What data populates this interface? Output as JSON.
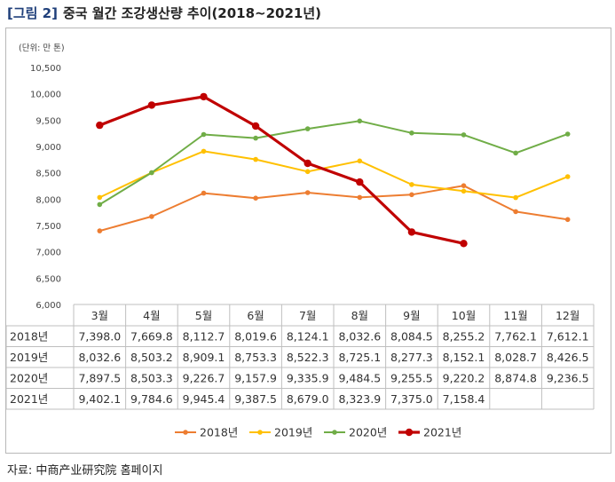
{
  "header": {
    "tag": "[그림 2]",
    "title": "중국 월간 조강생산량 추이(2018~2021년)"
  },
  "source": "자료: 中商产业研究院 홈페이지",
  "chart_data": {
    "type": "line",
    "unit_label": "(단위: 만 톤)",
    "categories": [
      "3월",
      "4월",
      "5월",
      "6월",
      "7월",
      "8월",
      "9월",
      "10월",
      "11월",
      "12월"
    ],
    "ylim": [
      6000,
      10500
    ],
    "yticks": [
      6000,
      6500,
      7000,
      7500,
      8000,
      8500,
      9000,
      9500,
      10000,
      10500
    ],
    "ytick_labels": [
      "6,000",
      "6,500",
      "7,000",
      "7,500",
      "8,000",
      "8,500",
      "9,000",
      "9,500",
      "10,000",
      "10,500"
    ],
    "legend_position": "bottom",
    "series": [
      {
        "name": "2018년",
        "color": "#ed7d31",
        "width": 2,
        "marker": 2.8,
        "values": [
          7398.0,
          7669.8,
          8112.7,
          8019.6,
          8124.1,
          8032.6,
          8084.5,
          8255.2,
          7762.1,
          7612.1
        ],
        "labels": [
          "7,398.0",
          "7,669.8",
          "8,112.7",
          "8,019.6",
          "8,124.1",
          "8,032.6",
          "8,084.5",
          "8,255.2",
          "7,762.1",
          "7,612.1"
        ]
      },
      {
        "name": "2019년",
        "color": "#ffc000",
        "width": 2,
        "marker": 2.8,
        "values": [
          8032.6,
          8503.2,
          8909.1,
          8753.3,
          8522.3,
          8725.1,
          8277.3,
          8152.1,
          8028.7,
          8426.5
        ],
        "labels": [
          "8,032.6",
          "8,503.2",
          "8,909.1",
          "8,753.3",
          "8,522.3",
          "8,725.1",
          "8,277.3",
          "8,152.1",
          "8,028.7",
          "8,426.5"
        ]
      },
      {
        "name": "2020년",
        "color": "#70ad47",
        "width": 2,
        "marker": 2.8,
        "values": [
          7897.5,
          8503.3,
          9226.7,
          9157.9,
          9335.9,
          9484.5,
          9255.5,
          9220.2,
          8874.8,
          9236.5
        ],
        "labels": [
          "7,897.5",
          "8,503.3",
          "9,226.7",
          "9,157.9",
          "9,335.9",
          "9,484.5",
          "9,255.5",
          "9,220.2",
          "8,874.8",
          "9,236.5"
        ]
      },
      {
        "name": "2021년",
        "color": "#c00000",
        "width": 3.2,
        "marker": 4.2,
        "values": [
          9402.1,
          9784.6,
          9945.4,
          9387.5,
          8679.0,
          8323.9,
          7375.0,
          7158.4,
          null,
          null
        ],
        "labels": [
          "9,402.1",
          "9,784.6",
          "9,945.4",
          "9,387.5",
          "8,679.0",
          "8,323.9",
          "7,375.0",
          "7,158.4",
          "",
          ""
        ]
      }
    ]
  }
}
